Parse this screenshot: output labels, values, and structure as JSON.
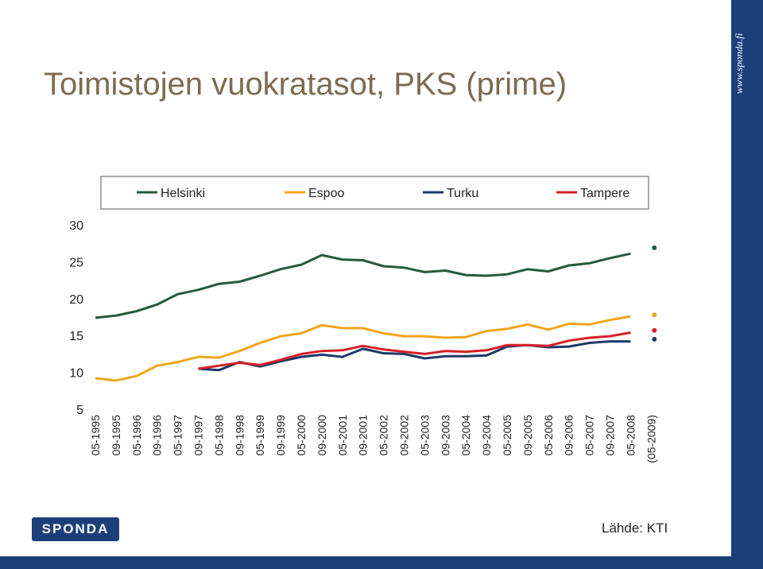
{
  "title": "Toimistojen vuokratasot, PKS (prime)",
  "source": "Lähde: KTI",
  "brand": {
    "logo_text": "SPONDA",
    "url": "www.sponda.fi",
    "band_color": "#1c3f7a"
  },
  "chart_data": {
    "type": "line",
    "categories": [
      "05-1995",
      "09-1995",
      "05-1996",
      "09-1996",
      "05-1997",
      "09-1997",
      "05-1998",
      "09-1998",
      "05-1999",
      "09-1999",
      "05-2000",
      "09-2000",
      "05-2001",
      "09-2001",
      "05-2002",
      "09-2002",
      "05-2003",
      "09-2003",
      "05-2004",
      "09-2004",
      "05-2005",
      "09-2005",
      "05-2006",
      "09-2006",
      "05-2007",
      "09-2007",
      "05-2008",
      "(05-2009)"
    ],
    "yticks": [
      5,
      10,
      15,
      20,
      25,
      30
    ],
    "ylim": [
      5,
      30
    ],
    "legend_position": "top",
    "series": [
      {
        "name": "Helsinki",
        "color": "#245b3d",
        "values": [
          17.4,
          17.7,
          18.3,
          19.2,
          20.6,
          21.2,
          22.0,
          22.3,
          23.1,
          24.0,
          24.6,
          25.9,
          25.3,
          25.2,
          24.4,
          24.2,
          23.6,
          23.8,
          23.2,
          23.1,
          23.3,
          24.0,
          23.7,
          24.5,
          24.8,
          25.5,
          26.1,
          null
        ],
        "forecast": 26.9
      },
      {
        "name": "Espoo",
        "color": "#f0a51c",
        "values": [
          9.2,
          8.9,
          9.5,
          10.9,
          11.4,
          12.1,
          12.0,
          12.9,
          14.0,
          14.9,
          15.3,
          16.4,
          16.0,
          16.0,
          15.3,
          14.9,
          14.9,
          14.7,
          14.8,
          15.6,
          15.9,
          16.5,
          15.8,
          16.6,
          16.5,
          17.1,
          17.6,
          null
        ],
        "forecast": 17.8
      },
      {
        "name": "Turku",
        "color": "#1d3a6b",
        "values": [
          null,
          null,
          null,
          null,
          null,
          10.5,
          10.3,
          11.4,
          10.8,
          11.5,
          12.1,
          12.4,
          12.1,
          13.2,
          12.6,
          12.5,
          11.9,
          12.2,
          12.2,
          12.3,
          13.5,
          13.7,
          13.4,
          13.5,
          14.0,
          14.2,
          14.2,
          null
        ],
        "forecast": 14.5
      },
      {
        "name": "Tampere",
        "color": "#d42027",
        "values": [
          null,
          null,
          null,
          null,
          null,
          10.5,
          10.9,
          11.3,
          11.0,
          11.7,
          12.5,
          12.9,
          13.0,
          13.6,
          13.1,
          12.8,
          12.5,
          12.9,
          12.8,
          13.0,
          13.7,
          13.7,
          13.6,
          14.3,
          14.7,
          14.9,
          15.4,
          null
        ],
        "forecast": 15.7
      }
    ]
  }
}
